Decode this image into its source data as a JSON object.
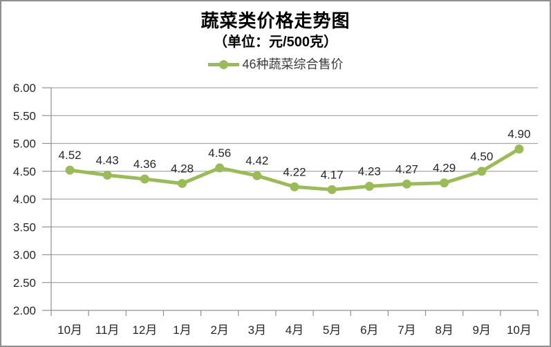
{
  "chart_data": {
    "type": "line",
    "title": "蔬菜类价格走势图",
    "subtitle": "（单位：元/500克）",
    "categories": [
      "10月",
      "11月",
      "12月",
      "1月",
      "2月",
      "3月",
      "4月",
      "5月",
      "6月",
      "7月",
      "8月",
      "9月",
      "10月"
    ],
    "series": [
      {
        "name": "46种蔬菜综合售价",
        "values": [
          4.52,
          4.43,
          4.36,
          4.28,
          4.56,
          4.42,
          4.22,
          4.17,
          4.23,
          4.27,
          4.29,
          4.5,
          4.9
        ],
        "data_labels": [
          "4.52",
          "4.43",
          "4.36",
          "4.28",
          "4.56",
          "4.42",
          "4.22",
          "4.17",
          "4.23",
          "4.27",
          "4.29",
          "4.50",
          "4.90"
        ]
      }
    ],
    "ylim": [
      2.0,
      6.0
    ],
    "ytick_step": 0.5,
    "ytick_labels": [
      "2.00",
      "2.50",
      "3.00",
      "3.50",
      "4.00",
      "4.50",
      "5.00",
      "5.50",
      "6.00"
    ],
    "xlabel": "",
    "ylabel": "",
    "grid": true,
    "legend_position": "top",
    "marker_shape": "circle",
    "colors": {
      "series": "#9BBB59",
      "gridline": "#a6a6a6",
      "axis": "#8f8f8f",
      "text": "#262626",
      "title": "#000000",
      "background": "#ffffff",
      "border": "#8f8f8f"
    }
  }
}
